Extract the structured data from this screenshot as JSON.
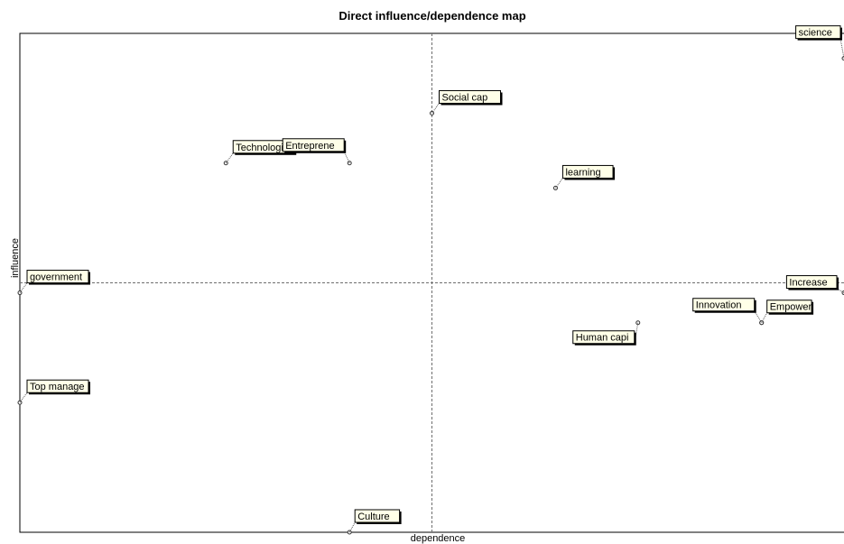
{
  "chart_data": {
    "type": "scatter",
    "title": "Direct influence/dependence map",
    "xlabel": "dependence",
    "ylabel": "influence",
    "xlim": [
      0,
      1
    ],
    "ylim": [
      0,
      1
    ],
    "x_divider": 0.5,
    "y_divider": 0.5,
    "grid": false,
    "points": [
      {
        "label": "science",
        "x": 1.0,
        "y": 0.95
      },
      {
        "label": "Social cap",
        "x": 0.5,
        "y": 0.84
      },
      {
        "label": "Technologi",
        "x": 0.25,
        "y": 0.74
      },
      {
        "label": "Entreprene",
        "x": 0.4,
        "y": 0.74
      },
      {
        "label": "learning",
        "x": 0.65,
        "y": 0.69
      },
      {
        "label": "government",
        "x": 0.0,
        "y": 0.48
      },
      {
        "label": "Increase",
        "x": 1.0,
        "y": 0.48
      },
      {
        "label": "Innovation",
        "x": 0.9,
        "y": 0.42
      },
      {
        "label": "Empower",
        "x": 0.9,
        "y": 0.42
      },
      {
        "label": "Human capi",
        "x": 0.75,
        "y": 0.42
      },
      {
        "label": "Top manage",
        "x": 0.0,
        "y": 0.26
      },
      {
        "label": "Culture",
        "x": 0.4,
        "y": 0.0
      }
    ],
    "colors": {
      "axis": "#000000",
      "divider": "#6e6e6e",
      "label_fill": "#ffffe8",
      "label_border": "#000000",
      "point_stroke": "#333333"
    }
  }
}
